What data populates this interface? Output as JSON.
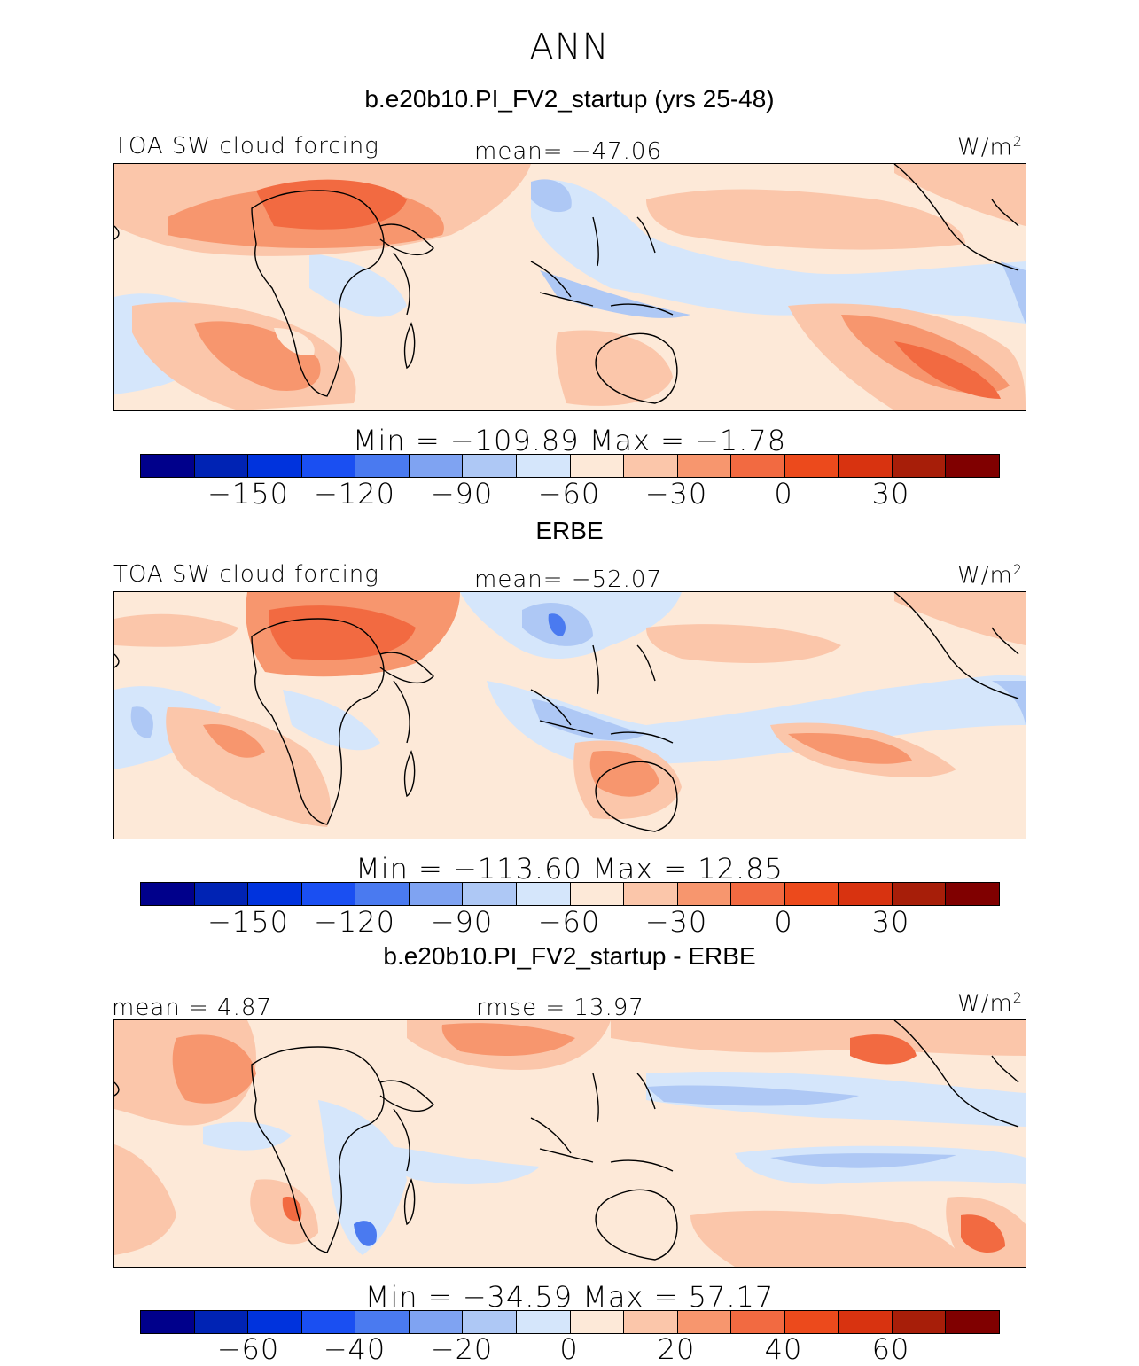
{
  "title": "ANN",
  "palette": [
    "#00008b",
    "#0023b4",
    "#0033dd",
    "#1a4ff2",
    "#4a7af0",
    "#7fa3f2",
    "#aec8f5",
    "#d5e6fb",
    "#fde9d8",
    "#fbc6aa",
    "#f7966e",
    "#f26a41",
    "#ec4a1c",
    "#d83310",
    "#a71e09",
    "#800000"
  ],
  "land_color": "#000000",
  "panels": [
    {
      "title": "b.e20b10.PI_FV2_startup (yrs 25-48)",
      "left_label": "TOA SW cloud forcing",
      "center_label": "mean= −47.06",
      "units": "W/m",
      "units_exp": "2",
      "minmax": "Min  =  −109.89  Max  =    −1.78",
      "ticks": [
        "−150",
        "−120",
        "−90",
        "−60",
        "−30",
        "0",
        "30"
      ]
    },
    {
      "title": "ERBE",
      "left_label": "TOA SW cloud forcing",
      "center_label": "mean= −52.07",
      "units": "W/m",
      "units_exp": "2",
      "minmax": "Min  =  −113.60  Max  =    12.85",
      "ticks": [
        "−150",
        "−120",
        "−90",
        "−60",
        "−30",
        "0",
        "30"
      ]
    },
    {
      "title": "b.e20b10.PI_FV2_startup - ERBE",
      "left_label": "mean =    4.87",
      "center_label": "rmse  =   13.97",
      "units": "W/m",
      "units_exp": "2",
      "minmax": "Min  =  −34.59  Max  =   57.17",
      "ticks": [
        "−60",
        "−40",
        "−20",
        "0",
        "20",
        "40",
        "60"
      ]
    }
  ]
}
